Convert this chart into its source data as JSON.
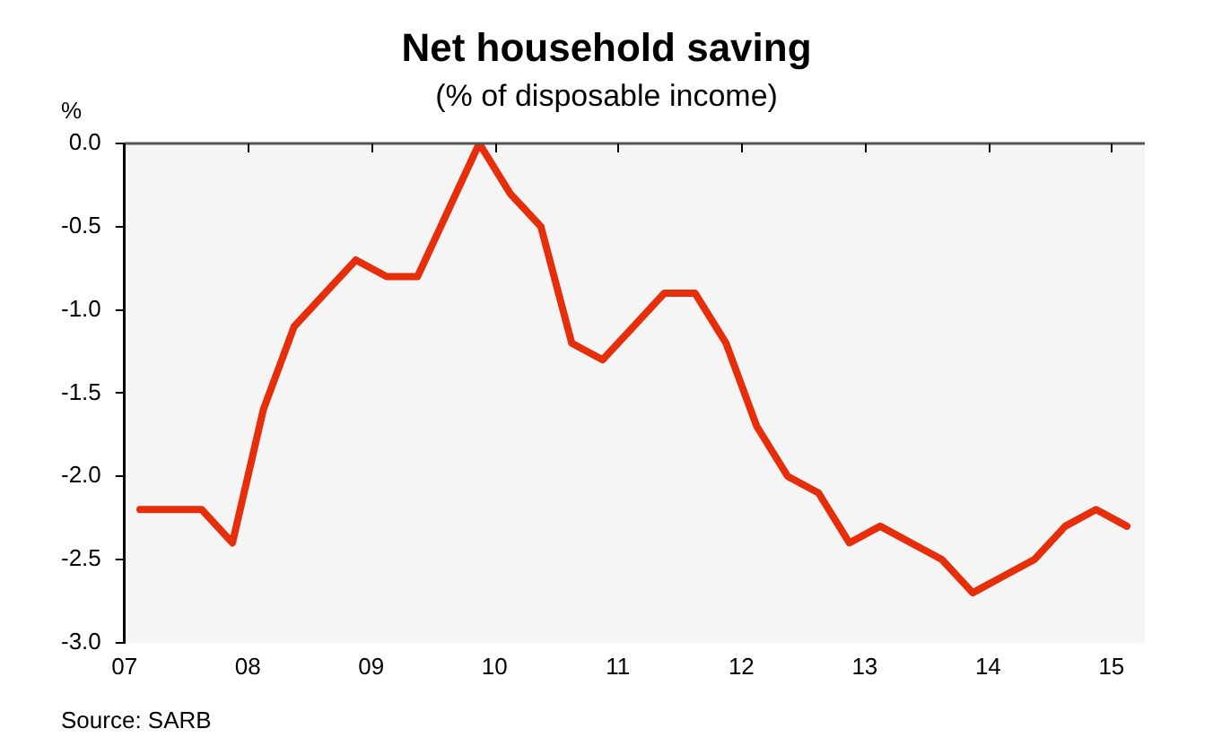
{
  "chart_data": {
    "type": "line",
    "title": "Net household saving",
    "subtitle": "(% of disposable income)",
    "ylabel": "%",
    "x": [
      2007.125,
      2007.375,
      2007.625,
      2007.875,
      2008.125,
      2008.375,
      2008.625,
      2008.875,
      2009.125,
      2009.375,
      2009.625,
      2009.875,
      2010.125,
      2010.375,
      2010.625,
      2010.875,
      2011.125,
      2011.375,
      2011.625,
      2011.875,
      2012.125,
      2012.375,
      2012.625,
      2012.875,
      2013.125,
      2013.375,
      2013.625,
      2013.875,
      2014.125,
      2014.375,
      2014.625,
      2014.875,
      2015.125
    ],
    "series": [
      {
        "color": "#e62e0a",
        "values": [
          -2.2,
          -2.2,
          -2.2,
          -2.4,
          -1.6,
          -1.1,
          -0.9,
          -0.7,
          -0.8,
          -0.8,
          -0.4,
          0.0,
          -0.3,
          -0.5,
          -1.2,
          -1.3,
          -1.1,
          -0.9,
          -0.9,
          -1.2,
          -1.7,
          -2.0,
          -2.1,
          -2.4,
          -2.3,
          -2.4,
          -2.5,
          -2.7,
          -2.6,
          -2.5,
          -2.3,
          -2.2,
          -2.3
        ]
      }
    ],
    "xlim": [
      2007,
      2015.27
    ],
    "xticks": [
      {
        "value": 2007,
        "label": "07"
      },
      {
        "value": 2008,
        "label": "08"
      },
      {
        "value": 2009,
        "label": "09"
      },
      {
        "value": 2010,
        "label": "10"
      },
      {
        "value": 2011,
        "label": "11"
      },
      {
        "value": 2012,
        "label": "12"
      },
      {
        "value": 2013,
        "label": "13"
      },
      {
        "value": 2014,
        "label": "14"
      },
      {
        "value": 2015,
        "label": "15"
      }
    ],
    "ylim": [
      -3.0,
      0.0
    ],
    "yticks": [
      {
        "value": 0,
        "label": "0.0"
      },
      {
        "value": -0.5,
        "label": "-0.5"
      },
      {
        "value": -1,
        "label": "-1.0"
      },
      {
        "value": -1.5,
        "label": "-1.5"
      },
      {
        "value": -2,
        "label": "-2.0"
      },
      {
        "value": -2.5,
        "label": "-2.5"
      },
      {
        "value": -3,
        "label": "-3.0"
      }
    ],
    "grid": false,
    "legend": false,
    "marker": "none",
    "line_style": "solid",
    "annotations": [
      "Source: SARB"
    ]
  }
}
